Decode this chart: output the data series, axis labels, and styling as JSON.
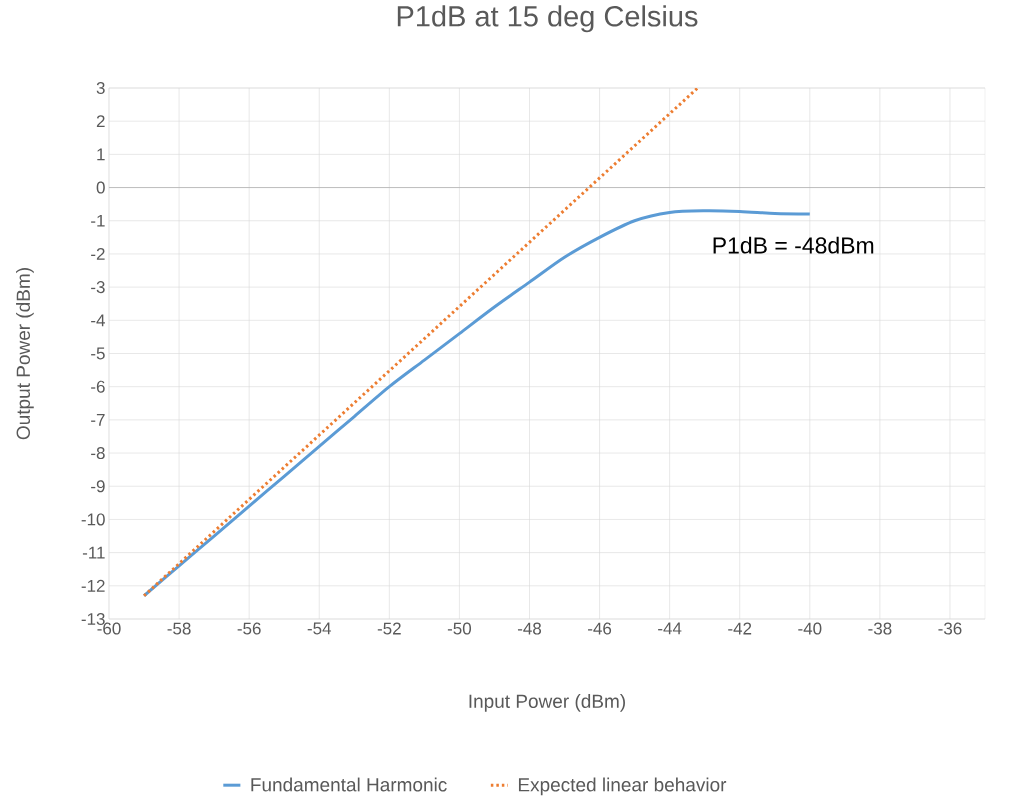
{
  "chart_data": {
    "type": "line",
    "title": "P1dB at 15 deg Celsius",
    "xlabel": "Input Power (dBm)",
    "ylabel": "Output Power (dBm)",
    "xlim": [
      -60,
      -35
    ],
    "ylim": [
      -13,
      3
    ],
    "xticks": [
      -60,
      -58,
      -56,
      -54,
      -52,
      -50,
      -48,
      -46,
      -44,
      -42,
      -40,
      -38,
      -36
    ],
    "yticks": [
      -13,
      -12,
      -11,
      -10,
      -9,
      -8,
      -7,
      -6,
      -5,
      -4,
      -3,
      -2,
      -1,
      0,
      1,
      2,
      3
    ],
    "grid": true,
    "legend": "bottom",
    "annotations": [
      "P1dB = -48dBm"
    ],
    "series": [
      {
        "name": "Fundamental Harmonic",
        "color": "#5b9bd5",
        "line_style": "solid",
        "x": [
          -59,
          -58,
          -57,
          -56,
          -55,
          -54,
          -53,
          -52,
          -51,
          -50,
          -49,
          -48,
          -47,
          -46,
          -45,
          -44,
          -43,
          -42,
          -41,
          -40
        ],
        "values": [
          -12.3,
          -11.4,
          -10.5,
          -9.6,
          -8.7,
          -7.8,
          -6.9,
          -6.0,
          -5.2,
          -4.4,
          -3.6,
          -2.85,
          -2.1,
          -1.5,
          -1.0,
          -0.75,
          -0.7,
          -0.72,
          -0.78,
          -0.8
        ]
      },
      {
        "name": "Expected linear behavior",
        "color": "#ed7d31",
        "line_style": "dotted",
        "x": [
          -59,
          -43.2
        ],
        "values": [
          -12.3,
          3
        ]
      }
    ]
  }
}
